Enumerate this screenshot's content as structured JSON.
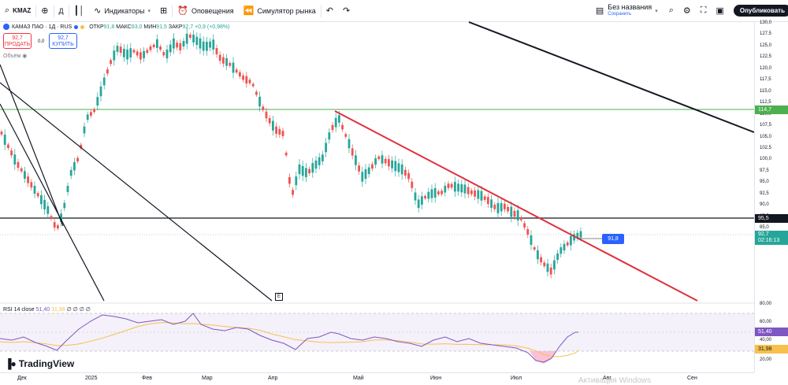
{
  "toolbar": {
    "symbol": "KMAZ",
    "interval": "Д",
    "indicators": "Индикаторы",
    "alerts": "Оповещения",
    "replay": "Симулятор рынка",
    "layout_name": "Без названия",
    "layout_saved": "Сохранить",
    "publish": "Опубликовать"
  },
  "legend": {
    "title": "КАМАЗ ПАО · 1Д · RUS",
    "open_label": "ОТКР",
    "open": "91,8",
    "high_label": "МАКС",
    "high": "93,0",
    "low_label": "МИН",
    "low": "91,5",
    "close_label": "ЗАКР",
    "close": "92,7",
    "change": "+0,9 (+0,98%)",
    "volume_label": "Объём"
  },
  "trade": {
    "sell_price": "92,7",
    "sell_label": "ПРОДАТЬ",
    "spread": "0,0",
    "buy_price": "92,7",
    "buy_label": "КУПИТЬ"
  },
  "price_axis": {
    "ticks": [
      "130,0",
      "127,5",
      "125,0",
      "122,5",
      "120,0",
      "117,5",
      "115,0",
      "112,5",
      "110,0",
      "107,5",
      "105,0",
      "102,5",
      "100,0",
      "97,5",
      "95,0",
      "92,5",
      "90,0",
      "87,5",
      "85,0",
      "82,5"
    ],
    "tag_green": "114,7",
    "tag_black": "95,5",
    "tag_last": "92,7",
    "tag_countdown": "02:16:13"
  },
  "rsi_axis": {
    "ticks": [
      "80,00",
      "60,00",
      "40,00",
      "20,00"
    ],
    "tag_rsi": "51,40",
    "tag_ma": "31,98"
  },
  "rsi_legend": {
    "label": "RSI 14 close",
    "value1": "51,40",
    "value2": "31,98",
    "extra": "∅ ∅ ∅ ∅"
  },
  "time_axis": {
    "labels": [
      "Дек",
      "2025",
      "Фев",
      "Мар",
      "Апр",
      "Май",
      "Июн",
      "Июл",
      "Авг",
      "Сен"
    ]
  },
  "chart": {
    "callout": "91,8",
    "event_marker": "E",
    "logo_text": "TradingView",
    "watermark": "Активация Windows"
  },
  "colors": {
    "up": "#26a69a",
    "down": "#ef5350",
    "trendline_red": "#e0303e",
    "level_green": "#4caf50",
    "rsi_line": "#7e57c2",
    "rsi_ma": "#f7c04a",
    "accent": "#2962ff"
  }
}
